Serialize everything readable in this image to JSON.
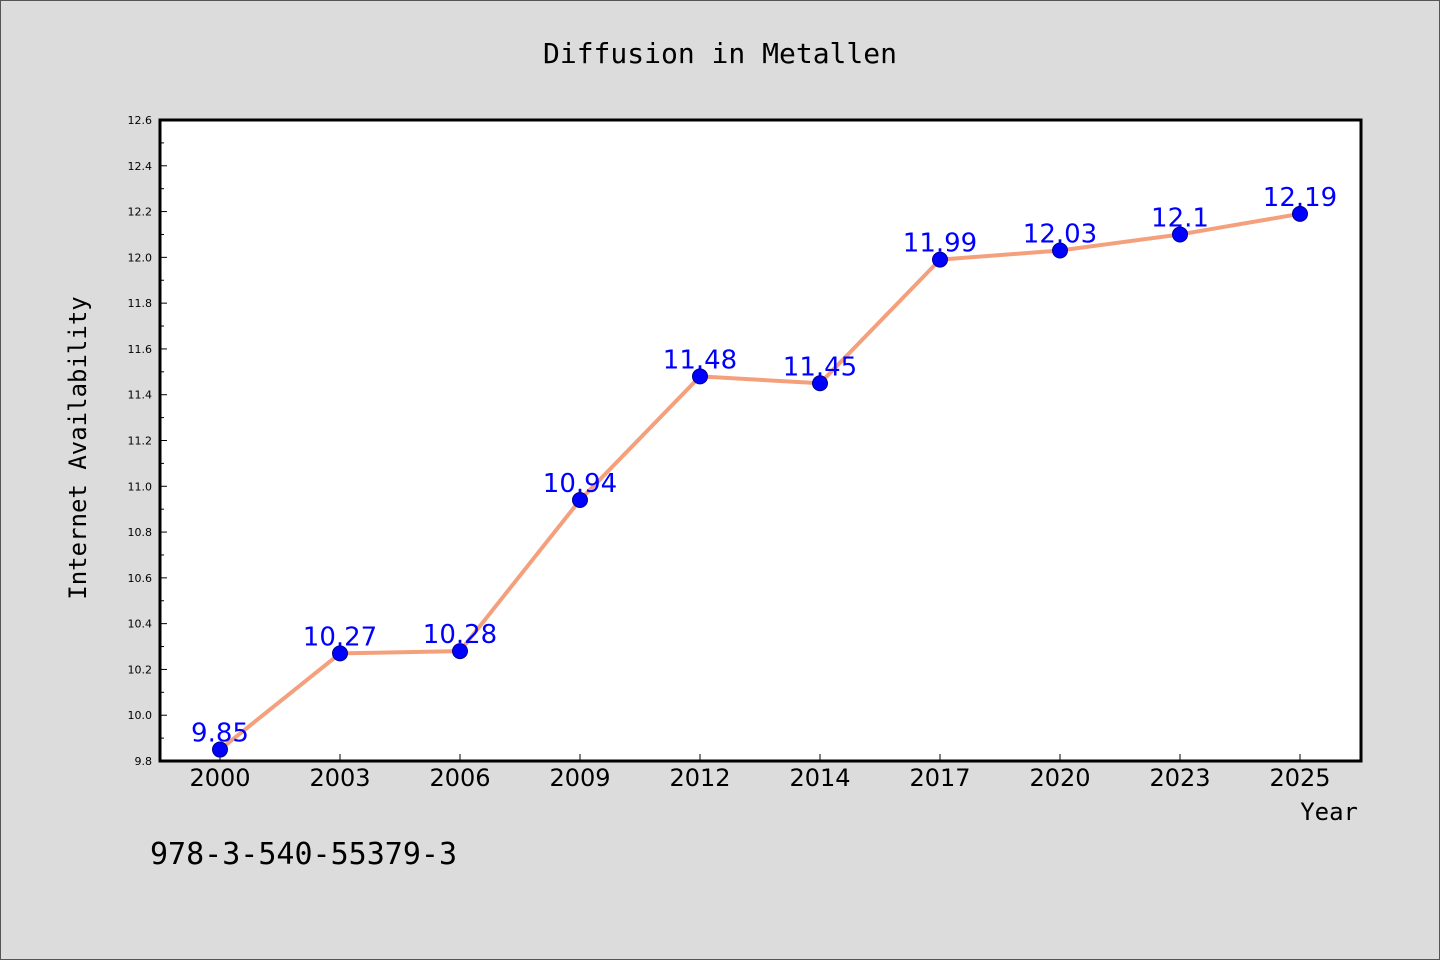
{
  "chart_data": {
    "type": "line",
    "title": "Diffusion in Metallen",
    "xlabel": "Year",
    "ylabel": "Internet Availability",
    "categories": [
      "2000",
      "2003",
      "2006",
      "2009",
      "2012",
      "2014",
      "2017",
      "2020",
      "2023",
      "2025"
    ],
    "values": [
      9.85,
      10.27,
      10.28,
      10.94,
      11.48,
      11.45,
      11.99,
      12.03,
      12.1,
      12.19
    ],
    "data_labels": [
      "9.85",
      "10.27",
      "10.28",
      "10.94",
      "11.48",
      "11.45",
      "11.99",
      "12.03",
      "12.1",
      "12.19"
    ],
    "ylim": [
      9.8,
      12.6
    ],
    "yticks": [
      "9.8",
      "10.0",
      "10.2",
      "10.4",
      "10.6",
      "10.8",
      "11.0",
      "11.2",
      "11.4",
      "11.6",
      "11.8",
      "12.0",
      "12.2",
      "12.4",
      "12.6"
    ],
    "grid": false,
    "colors": {
      "line": "#f4a07c",
      "marker": "#0000ff",
      "marker_edge": "#00008b",
      "label": "#0000ff",
      "plot_background": "#ffffff",
      "figure_background": "#dcdcdc"
    }
  },
  "footnote": "978-3-540-55379-3"
}
